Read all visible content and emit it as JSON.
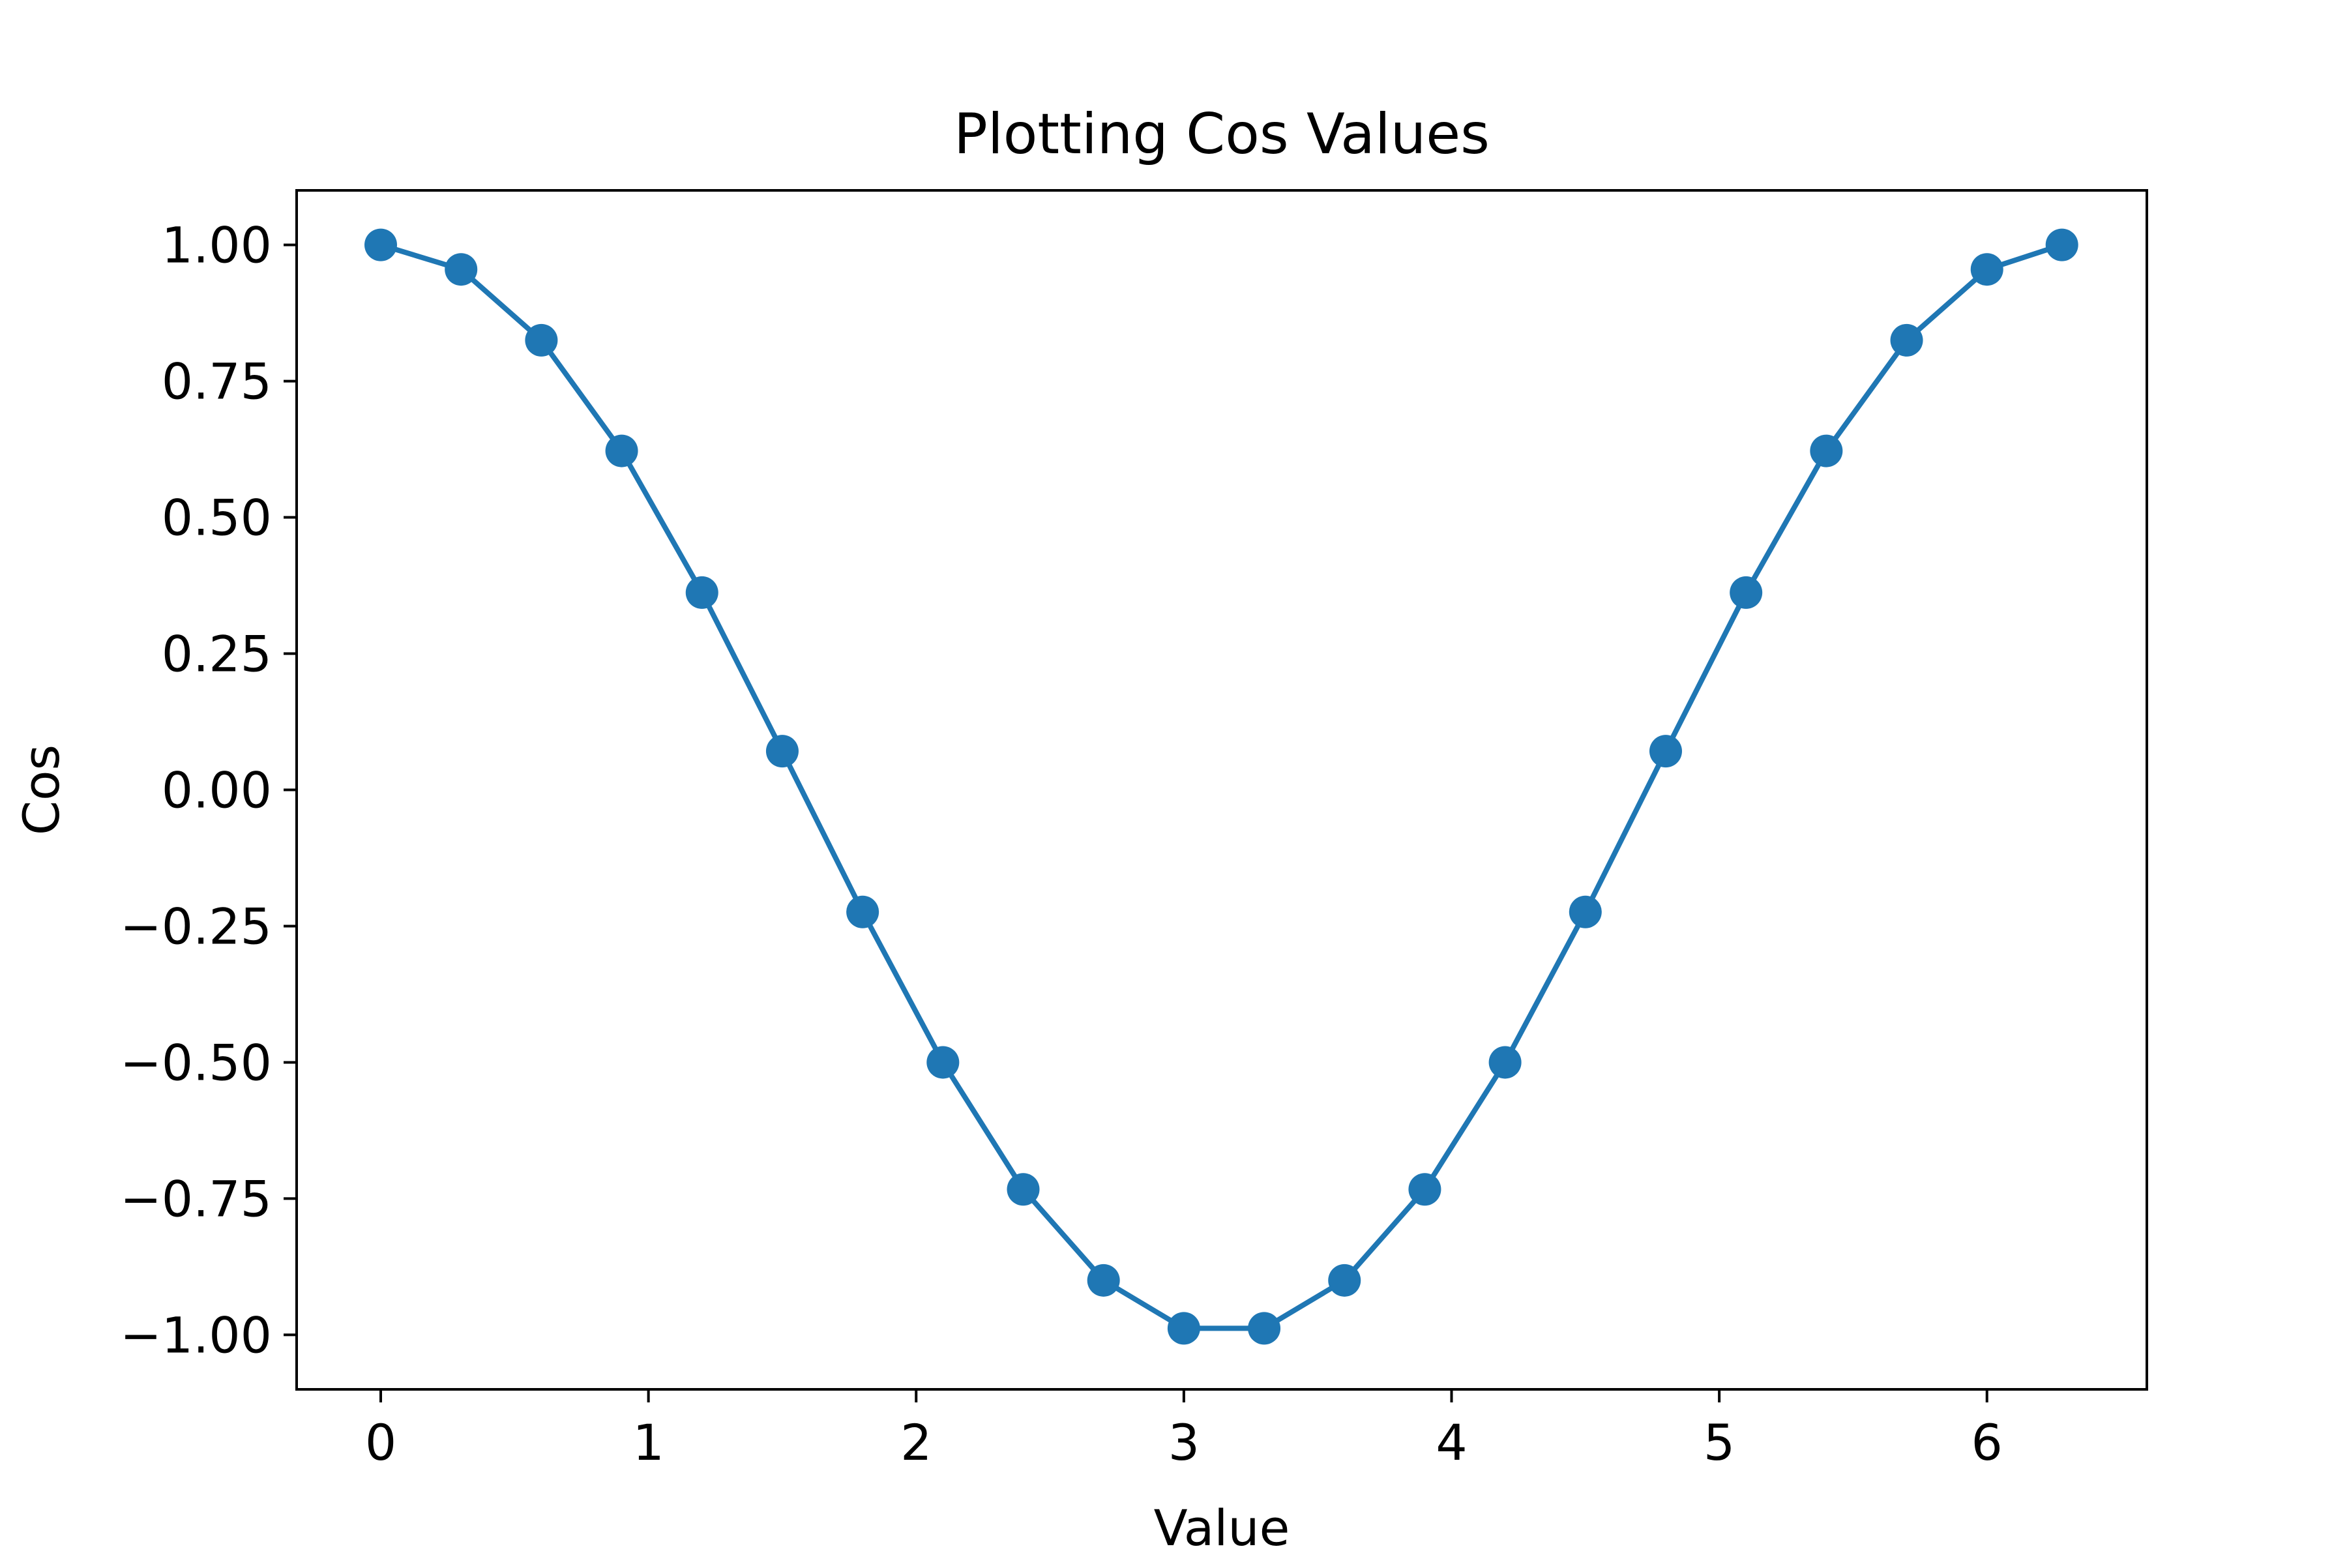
{
  "chart_data": {
    "type": "line",
    "title": "Plotting Cos Values",
    "xlabel": "Value",
    "ylabel": "Cos",
    "xlim": [
      -0.3142,
      6.5973
    ],
    "ylim": [
      -1.1,
      1.1
    ],
    "xticks": [
      0,
      1,
      2,
      3,
      4,
      5,
      6
    ],
    "xtick_labels": [
      "0",
      "1",
      "2",
      "3",
      "4",
      "5",
      "6"
    ],
    "yticks": [
      1.0,
      0.75,
      0.5,
      0.25,
      0.0,
      -0.25,
      -0.5,
      -0.75,
      -1.0
    ],
    "ytick_labels": [
      "1.00",
      "0.75",
      "0.50",
      "0.25",
      "0.00",
      "−0.25",
      "−0.50",
      "−0.75",
      "−1.00"
    ],
    "grid": false,
    "legend": null,
    "series": [
      {
        "color": "#1f77b4",
        "marker": "circle",
        "x": [
          0.0,
          0.3,
          0.6,
          0.9,
          1.2,
          1.5,
          1.8,
          2.1,
          2.4,
          2.7,
          3.0,
          3.3,
          3.6,
          3.9,
          4.2,
          4.5,
          4.8,
          5.1,
          5.4,
          5.7,
          6.0,
          6.28
        ],
        "y": [
          1.0,
          0.955,
          0.825,
          0.622,
          0.362,
          0.071,
          -0.224,
          -0.5,
          -0.733,
          -0.9,
          -0.988,
          -0.988,
          -0.9,
          -0.733,
          -0.5,
          -0.224,
          0.071,
          0.362,
          0.622,
          0.825,
          0.955,
          1.0
        ]
      }
    ]
  }
}
